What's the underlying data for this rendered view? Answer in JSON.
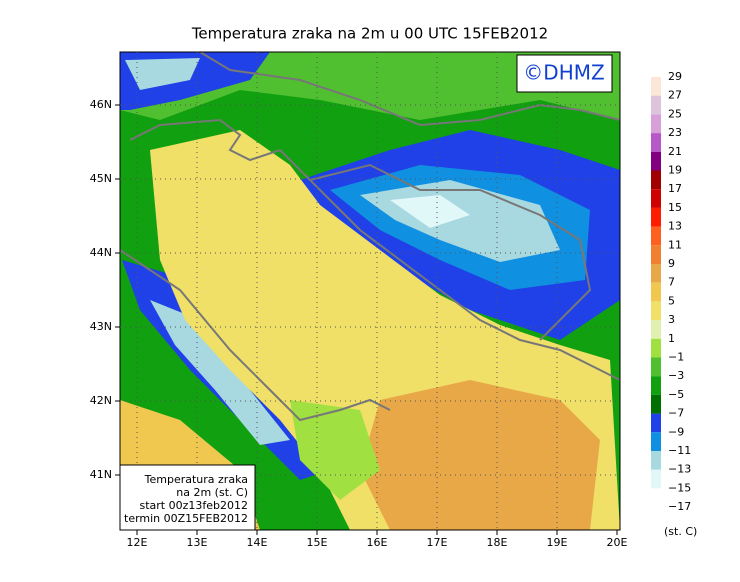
{
  "title": "Temperatura zraka na 2m u 00 UTC 15FEB2012",
  "logo": "©DHMZ",
  "lat_labels": [
    "46N",
    "45N",
    "44N",
    "43N",
    "42N",
    "41N"
  ],
  "lon_labels": [
    "12E",
    "13E",
    "14E",
    "15E",
    "16E",
    "17E",
    "18E",
    "19E",
    "20E"
  ],
  "info_box": [
    "Temperatura zraka",
    "na 2m (st. C)",
    "start 00z13feb2012",
    "termin 00Z15FEB2012"
  ],
  "colorbar": {
    "labels": [
      "29",
      "27",
      "25",
      "23",
      "21",
      "19",
      "17",
      "15",
      "13",
      "11",
      "9",
      "7",
      "5",
      "3",
      "1",
      "−1",
      "−3",
      "−5",
      "−7",
      "−9",
      "−11",
      "−13",
      "−15",
      "−17"
    ],
    "colors": [
      "#fbe6d8",
      "#dcc4dc",
      "#d8a0d8",
      "#b858c8",
      "#800080",
      "#a00000",
      "#d00000",
      "#ff1c00",
      "#ff6020",
      "#f08030",
      "#e8a848",
      "#f0c850",
      "#f0e068",
      "#e0f0b0",
      "#a0e040",
      "#50c030",
      "#10a010",
      "#007000",
      "#2040e8",
      "#1090e0",
      "#a8d8e0",
      "#e0f8f8",
      "#ffffff"
    ],
    "unit": "(st. C)"
  }
}
